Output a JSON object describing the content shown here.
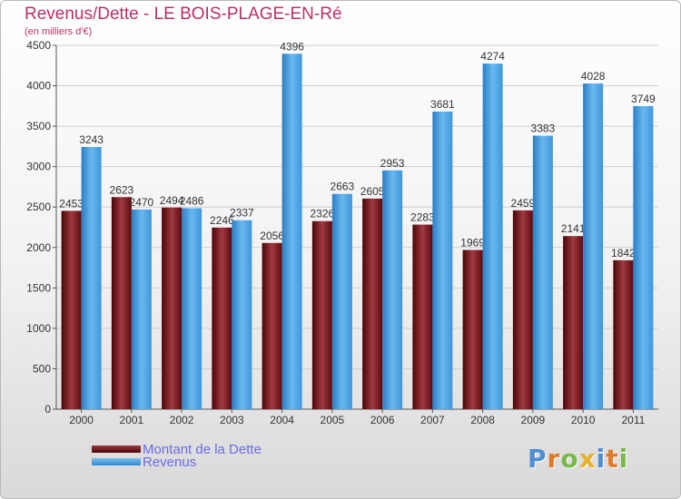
{
  "title": "Revenus/Dette - LE BOIS-PLAGE-EN-Ré",
  "subtitle": "(en milliers d'€)",
  "logo": {
    "text": "Proxiti",
    "letter_colors": [
      "#4f8fd6",
      "#e07a28",
      "#79b84a",
      "#e6b22c",
      "#4f8fd6",
      "#e07a28",
      "#79b84a"
    ]
  },
  "chart_data": {
    "type": "bar",
    "title": "Revenus/Dette - LE BOIS-PLAGE-EN-Ré",
    "subtitle": "(en milliers d'€)",
    "xlabel": "",
    "ylabel": "",
    "ylim": [
      0,
      4500
    ],
    "yticks": [
      0,
      500,
      1000,
      1500,
      2000,
      2500,
      3000,
      3500,
      4000,
      4500
    ],
    "grid": true,
    "legend": "bottom-left",
    "categories": [
      "2000",
      "2001",
      "2002",
      "2003",
      "2004",
      "2005",
      "2006",
      "2007",
      "2008",
      "2009",
      "2010",
      "2011"
    ],
    "series": [
      {
        "name": "Montant de la Dette",
        "color": "#7a1c22",
        "values": [
          2453,
          2623,
          2494,
          2246,
          2056,
          2326,
          2605,
          2283,
          1969,
          2459,
          2141,
          1842
        ]
      },
      {
        "name": "Revenus",
        "color": "#4ea6e6",
        "values": [
          3243,
          2470,
          2486,
          2337,
          4396,
          2663,
          2953,
          3681,
          4274,
          3383,
          4028,
          3749
        ]
      }
    ]
  }
}
